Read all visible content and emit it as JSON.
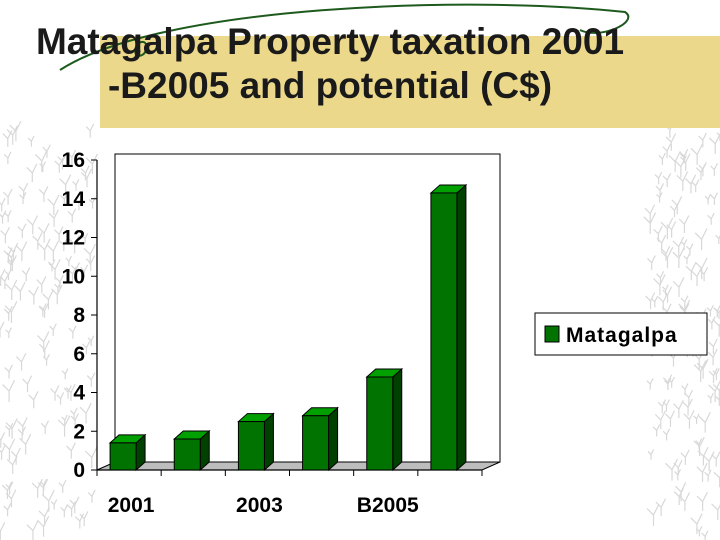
{
  "slide": {
    "title_line1": "Matagalpa Property taxation 2001",
    "title_line2": "-B2005 and potential (C$)"
  },
  "colors": {
    "bar_front": "#007300",
    "bar_top": "#00a000",
    "bar_side": "#004000",
    "title_band": "#ecd88a",
    "plot_wall": "#ffffff"
  },
  "chart_data": {
    "type": "bar",
    "categories": [
      "2001",
      "",
      "2003",
      "",
      "B2005",
      ""
    ],
    "series": [
      {
        "name": "Matagalpa",
        "values": [
          1.4,
          1.6,
          2.5,
          2.8,
          4.8,
          14.3
        ]
      }
    ],
    "x_tick_labels": [
      "2001",
      "2003",
      "B2005"
    ],
    "y_ticks": [
      "0",
      "2",
      "4",
      "6",
      "8",
      "10",
      "12",
      "14",
      "16"
    ],
    "ylim": [
      0,
      16
    ],
    "grid": false,
    "legend_position": "right",
    "style": "3d-bar"
  }
}
